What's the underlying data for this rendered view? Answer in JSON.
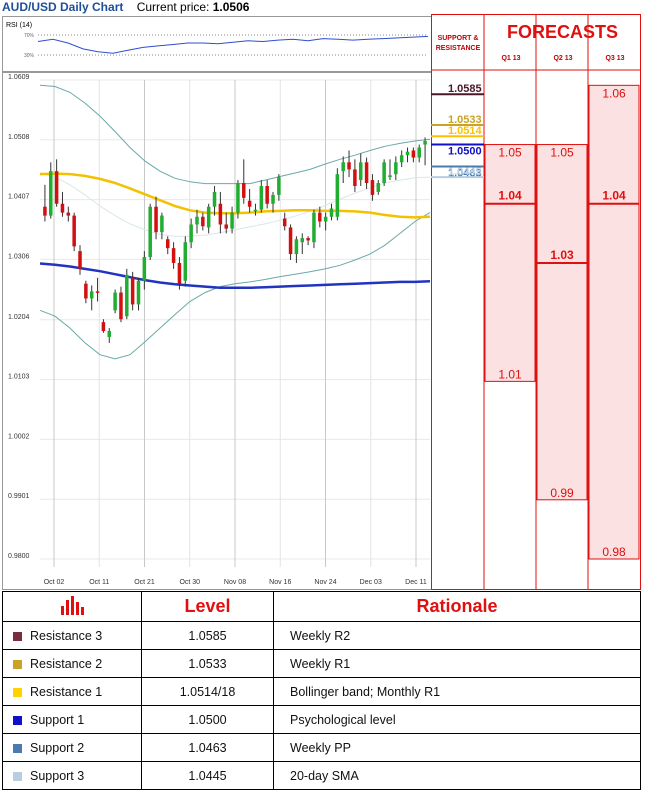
{
  "header": {
    "title": "AUD/USD Daily Chart",
    "current_price_label": "Current price:",
    "current_price": "1.0506"
  },
  "rsi_label": "RSI (14)",
  "rsi_levels": [
    "70%",
    "30%"
  ],
  "colors": {
    "res3": "#7a2d3d",
    "res2": "#c9a227",
    "res1": "#ffd200",
    "sup1": "#1010c8",
    "sup2": "#4a7ab0",
    "sup3": "#b8cde0",
    "ma50": "#f2c200",
    "ma200": "#2233c0",
    "up": "#1fae2f",
    "down": "#d21010",
    "forecast": "#e01010",
    "bband": "#6aa9a6"
  },
  "chart_data": {
    "type": "candlestick",
    "y_ticks": [
      "1.0609",
      "1.0508",
      "1.0407",
      "1.0306",
      "1.0204",
      "1.0103",
      "1.0002",
      "0.9901",
      "0.9800"
    ],
    "ylim": [
      0.98,
      1.0609
    ],
    "x_ticks": [
      "Oct 02",
      "Oct 11",
      "Oct 21",
      "Oct 30",
      "Nov 08",
      "Nov 16",
      "Nov 24",
      "Dec 03",
      "Dec 11"
    ],
    "candles": [
      {
        "o": 1.0395,
        "h": 1.0432,
        "l": 1.037,
        "c": 1.038
      },
      {
        "o": 1.038,
        "h": 1.047,
        "l": 1.0375,
        "c": 1.0455
      },
      {
        "o": 1.0455,
        "h": 1.0475,
        "l": 1.0395,
        "c": 1.04
      },
      {
        "o": 1.04,
        "h": 1.042,
        "l": 1.0378,
        "c": 1.0385
      },
      {
        "o": 1.0385,
        "h": 1.0395,
        "l": 1.037,
        "c": 1.038
      },
      {
        "o": 1.038,
        "h": 1.0385,
        "l": 1.032,
        "c": 1.0328
      },
      {
        "o": 1.032,
        "h": 1.033,
        "l": 1.028,
        "c": 1.029
      },
      {
        "o": 1.0265,
        "h": 1.027,
        "l": 1.0232,
        "c": 1.024
      },
      {
        "o": 1.024,
        "h": 1.0262,
        "l": 1.022,
        "c": 1.0252
      },
      {
        "o": 1.0252,
        "h": 1.0275,
        "l": 1.0235,
        "c": 1.025
      },
      {
        "o": 1.02,
        "h": 1.0205,
        "l": 1.0182,
        "c": 1.0185
      },
      {
        "o": 1.0175,
        "h": 1.019,
        "l": 1.0165,
        "c": 1.0185
      },
      {
        "o": 1.022,
        "h": 1.0255,
        "l": 1.0215,
        "c": 1.025
      },
      {
        "o": 1.025,
        "h": 1.026,
        "l": 1.02,
        "c": 1.0205
      },
      {
        "o": 1.021,
        "h": 1.029,
        "l": 1.0205,
        "c": 1.028
      },
      {
        "o": 1.0275,
        "h": 1.0285,
        "l": 1.022,
        "c": 1.023
      },
      {
        "o": 1.023,
        "h": 1.0275,
        "l": 1.022,
        "c": 1.027
      },
      {
        "o": 1.027,
        "h": 1.032,
        "l": 1.0255,
        "c": 1.031
      },
      {
        "o": 1.031,
        "h": 1.04,
        "l": 1.0305,
        "c": 1.0395
      },
      {
        "o": 1.0395,
        "h": 1.0412,
        "l": 1.034,
        "c": 1.0352
      },
      {
        "o": 1.0352,
        "h": 1.0385,
        "l": 1.034,
        "c": 1.038
      },
      {
        "o": 1.034,
        "h": 1.0345,
        "l": 1.0315,
        "c": 1.0325
      },
      {
        "o": 1.0325,
        "h": 1.0335,
        "l": 1.029,
        "c": 1.03
      },
      {
        "o": 1.03,
        "h": 1.031,
        "l": 1.0255,
        "c": 1.0265
      },
      {
        "o": 1.027,
        "h": 1.0345,
        "l": 1.026,
        "c": 1.0335
      },
      {
        "o": 1.0335,
        "h": 1.0375,
        "l": 1.0325,
        "c": 1.0365
      },
      {
        "o": 1.0365,
        "h": 1.039,
        "l": 1.035,
        "c": 1.0378
      },
      {
        "o": 1.0378,
        "h": 1.0385,
        "l": 1.0355,
        "c": 1.0362
      },
      {
        "o": 1.036,
        "h": 1.04,
        "l": 1.035,
        "c": 1.0395
      },
      {
        "o": 1.0395,
        "h": 1.043,
        "l": 1.038,
        "c": 1.042
      },
      {
        "o": 1.04,
        "h": 1.042,
        "l": 1.035,
        "c": 1.0365
      },
      {
        "o": 1.0365,
        "h": 1.0385,
        "l": 1.035,
        "c": 1.0358
      },
      {
        "o": 1.0358,
        "h": 1.0395,
        "l": 1.035,
        "c": 1.0385
      },
      {
        "o": 1.0385,
        "h": 1.044,
        "l": 1.0375,
        "c": 1.0435
      },
      {
        "o": 1.0435,
        "h": 1.0475,
        "l": 1.04,
        "c": 1.041
      },
      {
        "o": 1.0405,
        "h": 1.0425,
        "l": 1.0385,
        "c": 1.0395
      },
      {
        "o": 1.039,
        "h": 1.04,
        "l": 1.038,
        "c": 1.039
      },
      {
        "o": 1.039,
        "h": 1.044,
        "l": 1.0385,
        "c": 1.043
      },
      {
        "o": 1.043,
        "h": 1.044,
        "l": 1.0392,
        "c": 1.04
      },
      {
        "o": 1.04,
        "h": 1.042,
        "l": 1.0385,
        "c": 1.0415
      },
      {
        "o": 1.0415,
        "h": 1.045,
        "l": 1.0405,
        "c": 1.0445
      },
      {
        "o": 1.0375,
        "h": 1.0385,
        "l": 1.0355,
        "c": 1.0362
      },
      {
        "o": 1.036,
        "h": 1.0365,
        "l": 1.0305,
        "c": 1.0315
      },
      {
        "o": 1.0315,
        "h": 1.0345,
        "l": 1.03,
        "c": 1.034
      },
      {
        "o": 1.0335,
        "h": 1.035,
        "l": 1.0315,
        "c": 1.0342
      },
      {
        "o": 1.0342,
        "h": 1.0345,
        "l": 1.033,
        "c": 1.0338
      },
      {
        "o": 1.0335,
        "h": 1.039,
        "l": 1.0325,
        "c": 1.0385
      },
      {
        "o": 1.0385,
        "h": 1.0395,
        "l": 1.036,
        "c": 1.037
      },
      {
        "o": 1.037,
        "h": 1.0385,
        "l": 1.0355,
        "c": 1.0378
      },
      {
        "o": 1.0378,
        "h": 1.04,
        "l": 1.0372,
        "c": 1.0392
      },
      {
        "o": 1.0378,
        "h": 1.046,
        "l": 1.0372,
        "c": 1.045
      },
      {
        "o": 1.0455,
        "h": 1.048,
        "l": 1.0435,
        "c": 1.047
      },
      {
        "o": 1.047,
        "h": 1.049,
        "l": 1.0445,
        "c": 1.0458
      },
      {
        "o": 1.0458,
        "h": 1.0475,
        "l": 1.042,
        "c": 1.043
      },
      {
        "o": 1.044,
        "h": 1.0485,
        "l": 1.043,
        "c": 1.047
      },
      {
        "o": 1.047,
        "h": 1.0478,
        "l": 1.0425,
        "c": 1.0435
      },
      {
        "o": 1.044,
        "h": 1.045,
        "l": 1.0405,
        "c": 1.0415
      },
      {
        "o": 1.042,
        "h": 1.044,
        "l": 1.0415,
        "c": 1.0435
      },
      {
        "o": 1.0435,
        "h": 1.0475,
        "l": 1.043,
        "c": 1.047
      },
      {
        "o": 1.0445,
        "h": 1.0475,
        "l": 1.044,
        "c": 1.0448
      },
      {
        "o": 1.045,
        "h": 1.048,
        "l": 1.044,
        "c": 1.047
      },
      {
        "o": 1.047,
        "h": 1.049,
        "l": 1.0462,
        "c": 1.0482
      },
      {
        "o": 1.0482,
        "h": 1.0495,
        "l": 1.047,
        "c": 1.0488
      },
      {
        "o": 1.049,
        "h": 1.0495,
        "l": 1.047,
        "c": 1.0478
      },
      {
        "o": 1.0478,
        "h": 1.05,
        "l": 1.047,
        "c": 1.0495
      },
      {
        "o": 1.05,
        "h": 1.0512,
        "l": 1.0465,
        "c": 1.0506
      }
    ],
    "ma50": [
      1.045,
      1.0451,
      1.045,
      1.0447,
      1.0442,
      1.0435,
      1.0426,
      1.0416,
      1.0406,
      1.0396,
      1.0389,
      1.0385,
      1.0384,
      1.0384,
      1.0385,
      1.0387,
      1.0388,
      1.0389,
      1.0389,
      1.0388,
      1.0388,
      1.0387,
      1.0385,
      1.0381,
      1.0378,
      1.0377,
      1.0378
    ],
    "ma200": [
      1.0299,
      1.0297,
      1.0294,
      1.029,
      1.0286,
      1.0281,
      1.0276,
      1.0271,
      1.0267,
      1.0264,
      1.0262,
      1.026,
      1.0258,
      1.0258,
      1.0258,
      1.0259,
      1.026,
      1.0261,
      1.0262,
      1.0263,
      1.0264,
      1.0265,
      1.0266,
      1.0267,
      1.0268,
      1.0268,
      1.0269
    ],
    "bb_upper": [
      1.06,
      1.0598,
      1.0588,
      1.057,
      1.0548,
      1.0522,
      1.0495,
      1.0472,
      1.0455,
      1.0443,
      1.0437,
      1.0434,
      1.0434,
      1.0434,
      1.0434,
      1.044,
      1.0446,
      1.0452,
      1.0458,
      1.0467,
      1.0475,
      1.0482,
      1.049,
      1.0497,
      1.0502,
      1.0506,
      1.0509
    ],
    "bb_mid": [
      1.0452,
      1.0445,
      1.0432,
      1.0415,
      1.0396,
      1.038,
      1.0366,
      1.0356,
      1.0348,
      1.0345,
      1.0345,
      1.0347,
      1.0351,
      1.0356,
      1.0361,
      1.0366,
      1.0372,
      1.0379,
      1.0387,
      1.0397,
      1.0408,
      1.0418,
      1.0427,
      1.0435,
      1.044,
      1.0444,
      1.0445
    ],
    "bb_lower": [
      1.022,
      1.021,
      1.019,
      1.0165,
      1.0145,
      1.0138,
      1.0145,
      1.0167,
      1.019,
      1.0213,
      1.0235,
      1.025,
      1.026,
      1.0265,
      1.0268,
      1.0272,
      1.0277,
      1.0281,
      1.0285,
      1.029,
      1.0296,
      1.0305,
      1.0315,
      1.033,
      1.035,
      1.037,
      1.0385
    ],
    "rsi": [
      52,
      55,
      50,
      42,
      38,
      36,
      40,
      44,
      46,
      48,
      50,
      50,
      49,
      51,
      53,
      52,
      54,
      55,
      53,
      56,
      55,
      54,
      55,
      56,
      57,
      58,
      59
    ],
    "level_labels": [
      {
        "text": "1.0585",
        "value": 1.0585,
        "color": "#4a1828"
      },
      {
        "text": "1.0533",
        "value": 1.0533,
        "color": "#c9a227"
      },
      {
        "text": "1.0514",
        "value": 1.0514,
        "color": "#ffc000"
      },
      {
        "text": "1.0500",
        "value": 1.05,
        "color": "#1010c8"
      },
      {
        "text": "1.0463",
        "value": 1.0463,
        "color": "#4a7ab0"
      },
      {
        "text": "1.0445",
        "value": 1.0445,
        "color": "#b8cde0"
      }
    ]
  },
  "panel": {
    "support_resistance_label": "SUPPORT & RESISTANCE",
    "forecasts_title": "FORECASTS",
    "quarters": [
      "Q1 13",
      "Q2 13",
      "Q3 13"
    ]
  },
  "forecasts": [
    {
      "quarter": "Q1 13",
      "low": 1.01,
      "high": 1.05,
      "mid": 1.04,
      "labels": [
        "1.05",
        "1.04",
        "1.01"
      ]
    },
    {
      "quarter": "Q2 13",
      "low": 0.99,
      "high": 1.05,
      "mid": 1.03,
      "labels": [
        "1.05",
        "1.03",
        "0.99"
      ]
    },
    {
      "quarter": "Q3 13",
      "low": 0.98,
      "high": 1.06,
      "mid": 1.04,
      "labels": [
        "1.06",
        "1.04",
        "0.98"
      ]
    }
  ],
  "table": {
    "headers": [
      "Level",
      "Rationale"
    ],
    "rows": [
      {
        "name": "Resistance 3",
        "level": "1.0585",
        "rationale": "Weekly R2",
        "color": "#7a2d3d"
      },
      {
        "name": "Resistance 2",
        "level": "1.0533",
        "rationale": "Weekly R1",
        "color": "#c9a227"
      },
      {
        "name": "Resistance 1",
        "level": "1.0514/18",
        "rationale": "Bollinger band; Monthly R1",
        "color": "#ffd200"
      },
      {
        "name": "Support 1",
        "level": "1.0500",
        "rationale": "Psychological level",
        "color": "#1010c8"
      },
      {
        "name": "Support 2",
        "level": "1.0463",
        "rationale": "Weekly PP",
        "color": "#4a7ab0"
      },
      {
        "name": "Support 3",
        "level": "1.0445",
        "rationale": "20-day SMA",
        "color": "#b8cde0"
      }
    ]
  }
}
